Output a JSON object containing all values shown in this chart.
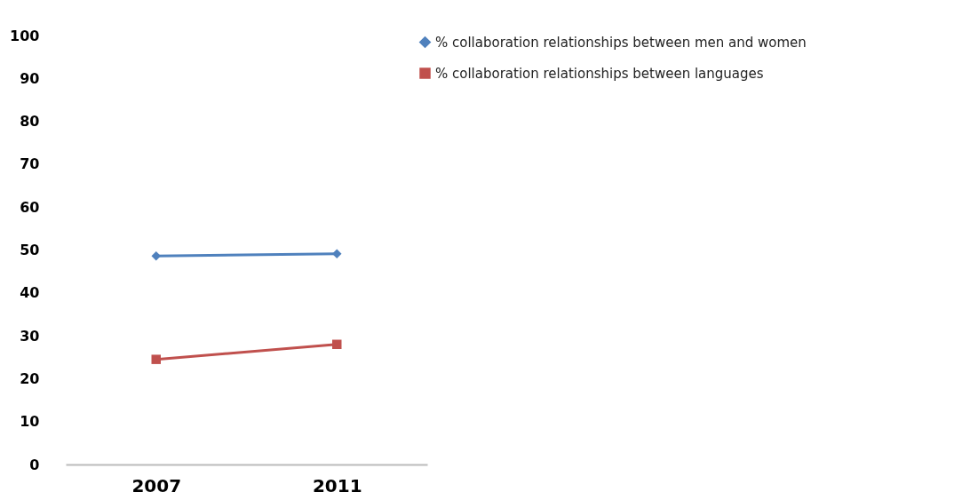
{
  "chart_data": {
    "type": "line",
    "categories": [
      "2007",
      "2011"
    ],
    "series": [
      {
        "name": "% collaboration relationships between men and women",
        "color": "#4f81bd",
        "marker": "diamond",
        "values": [
          48.6,
          49.1
        ]
      },
      {
        "name": "% collaboration relationships between languages",
        "color": "#c0504d",
        "marker": "square",
        "values": [
          24.5,
          28.0
        ]
      }
    ],
    "ylim": [
      0,
      100
    ],
    "yticks": [
      0,
      10,
      20,
      30,
      40,
      50,
      60,
      70,
      80,
      90,
      100
    ],
    "grid": false,
    "legend": "right",
    "line_style": "solid"
  }
}
